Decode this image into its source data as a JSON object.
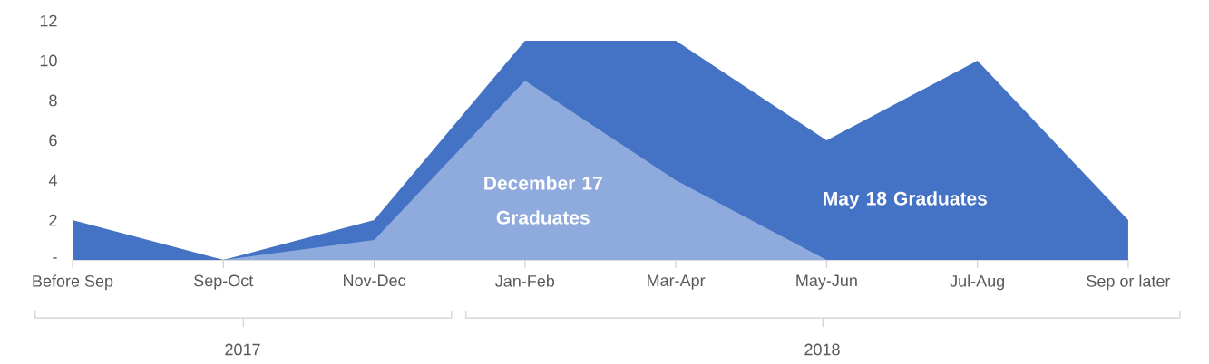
{
  "chart_data": {
    "type": "area",
    "categories": [
      "Before Sep",
      "Sep-Oct",
      "Nov-Dec",
      "Jan-Feb",
      "Mar-Apr",
      "May-Jun",
      "Jul-Aug",
      "Sep or later"
    ],
    "series": [
      {
        "name": "May 18 Graduates",
        "color": "#4472c4",
        "values": [
          2,
          0,
          2,
          11,
          11,
          6,
          10,
          2
        ]
      },
      {
        "name": "December 17 Graduates",
        "color": "#8faadc",
        "values": [
          null,
          0,
          1,
          9,
          4,
          0,
          null,
          null
        ]
      }
    ],
    "ylim": [
      0,
      12
    ],
    "yticks": [
      {
        "value": 0,
        "label": "-"
      },
      2,
      4,
      6,
      8,
      10,
      12
    ],
    "annotations": [
      "2017",
      "2018"
    ]
  }
}
